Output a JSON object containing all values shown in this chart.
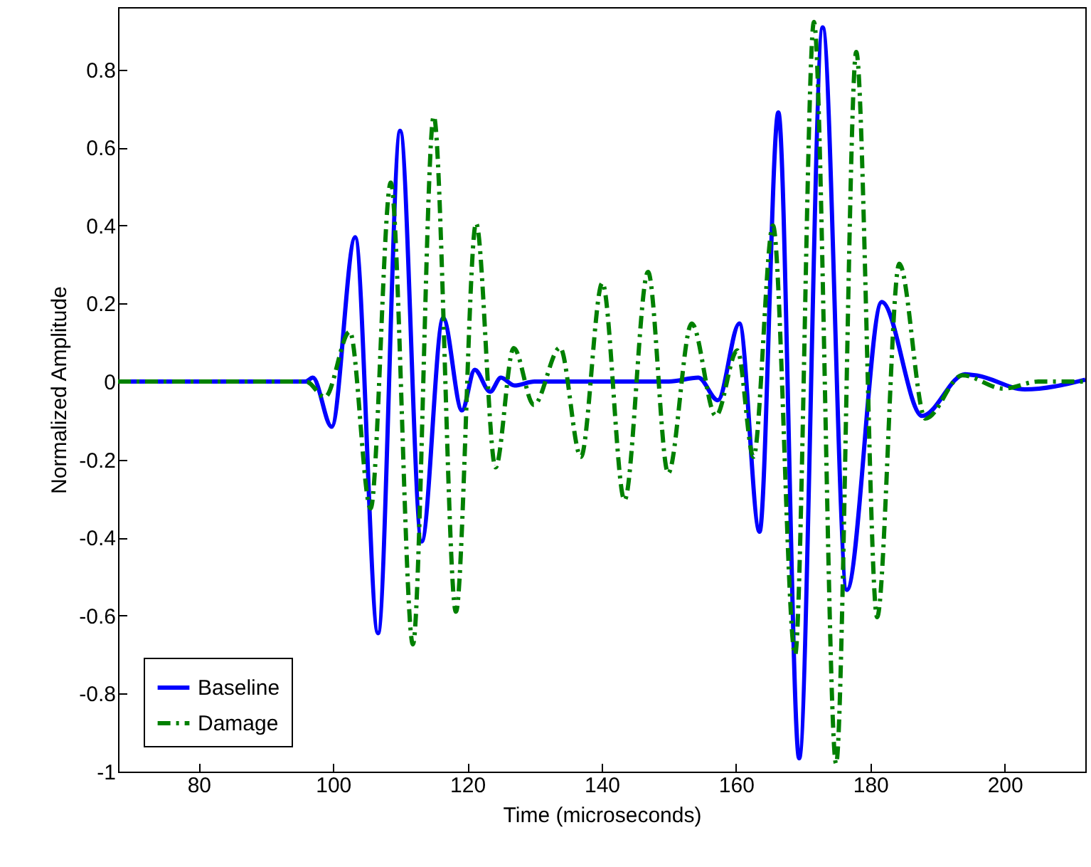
{
  "chart_data": {
    "type": "line",
    "xlabel": "Time (microseconds)",
    "ylabel": "Normalized Amplitude",
    "xlim": [
      68,
      212
    ],
    "ylim": [
      -1,
      0.96
    ],
    "xticks": [
      80,
      100,
      120,
      140,
      160,
      180,
      200
    ],
    "yticks": [
      -1,
      -0.8,
      -0.6,
      -0.4,
      -0.2,
      0,
      0.2,
      0.4,
      0.6,
      0.8
    ],
    "legend": "bottom left",
    "series": [
      {
        "name": "Baseline",
        "color": "#0000ff",
        "line_style": "solid",
        "x": [
          68,
          80,
          90,
          95.9,
          97,
          99.8,
          103.3,
          106.7,
          110,
          113.2,
          116.4,
          119.2,
          121.1,
          123.4,
          125,
          127,
          130,
          140,
          150,
          154.4,
          157.3,
          160.5,
          163.5,
          166.3,
          169.4,
          172.9,
          176.5,
          181.7,
          187.7,
          194.1,
          196,
          203,
          212
        ],
        "values": [
          0,
          0,
          0,
          0,
          0.01,
          -0.116,
          0.37,
          -0.645,
          0.643,
          -0.41,
          0.163,
          -0.074,
          0.03,
          -0.026,
          0.01,
          -0.01,
          0,
          0,
          0,
          0.01,
          -0.048,
          0.149,
          -0.385,
          0.69,
          -0.966,
          0.908,
          -0.534,
          0.204,
          -0.088,
          0.019,
          0.015,
          -0.02,
          0.005
        ]
      },
      {
        "name": "Damage",
        "color": "#008000",
        "line_style": "dashed",
        "x": [
          68,
          80,
          90,
          96,
          98.8,
          102.5,
          105.6,
          108.6,
          111.9,
          115,
          118.3,
          121.3,
          124.2,
          126.9,
          129.9,
          133.8,
          136.9,
          140.1,
          143.4,
          146.9,
          149.9,
          153.4,
          157,
          160.2,
          162.6,
          165.5,
          168.8,
          171.6,
          174.9,
          177.9,
          181,
          184.3,
          188.2,
          193.7,
          199.8,
          205,
          212
        ],
        "values": [
          0,
          0,
          0,
          0,
          -0.04,
          0.128,
          -0.325,
          0.51,
          -0.674,
          0.68,
          -0.59,
          0.406,
          -0.22,
          0.086,
          -0.06,
          0.087,
          -0.193,
          0.253,
          -0.304,
          0.281,
          -0.235,
          0.149,
          -0.088,
          0.08,
          -0.193,
          0.4,
          -0.7,
          0.922,
          -0.98,
          0.845,
          -0.604,
          0.302,
          -0.095,
          0.016,
          -0.018,
          0,
          0
        ]
      }
    ]
  }
}
